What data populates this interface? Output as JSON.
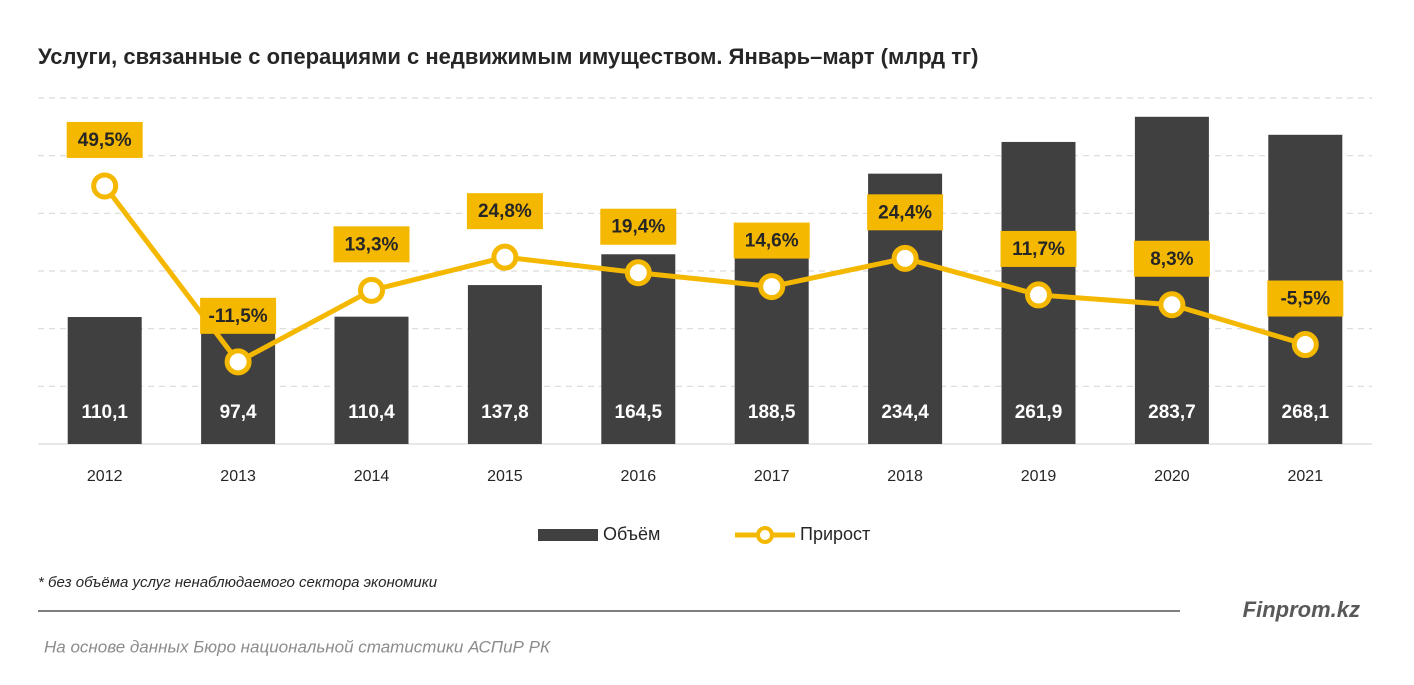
{
  "chart_data": {
    "type": "bar",
    "title": "Услуги, связанные с операциями с недвижимым имуществом. Январь–март (млрд тг)",
    "categories": [
      "2012",
      "2013",
      "2014",
      "2015",
      "2016",
      "2017",
      "2018",
      "2019",
      "2020",
      "2021"
    ],
    "series": [
      {
        "name": "Объём",
        "type": "bar",
        "color": "#404040",
        "values": [
          110.1,
          97.4,
          110.4,
          137.8,
          164.5,
          188.5,
          234.4,
          261.9,
          283.7,
          268.1
        ],
        "value_labels": [
          "110,1",
          "97,4",
          "110,4",
          "137,8",
          "164,5",
          "188,5",
          "234,4",
          "261,9",
          "283,7",
          "268,1"
        ]
      },
      {
        "name": "Прирост",
        "type": "line",
        "axis": "y2",
        "color": "#f5b800",
        "values": [
          49.5,
          -11.5,
          13.3,
          24.8,
          19.4,
          14.6,
          24.4,
          11.7,
          8.3,
          -5.5
        ],
        "value_labels": [
          "49,5%",
          "-11,5%",
          "13,3%",
          "24,8%",
          "19,4%",
          "14,6%",
          "24,4%",
          "11,7%",
          "8,3%",
          "-5,5%"
        ]
      }
    ],
    "ylim": [
      0,
      300
    ],
    "yticks": [
      0,
      50,
      100,
      150,
      200,
      250,
      300
    ],
    "y2lim": [
      -40,
      80
    ],
    "tick_labels": false,
    "grid": true,
    "note": "* без объёма услуг ненаблюдаемого сектора экономики",
    "brand": "Finprom.kz",
    "source": "На основе данных Бюро национальной статистики АСПиР РК"
  }
}
